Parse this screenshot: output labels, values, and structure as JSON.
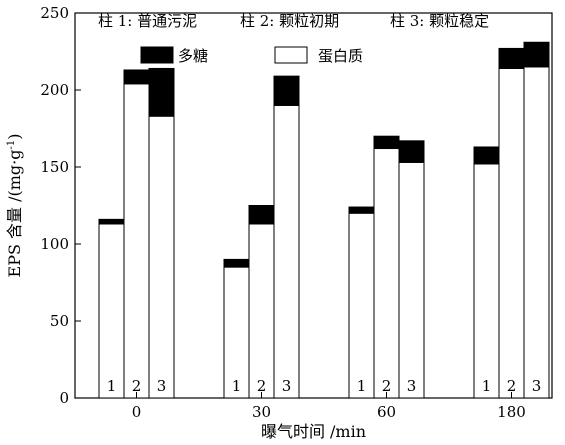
{
  "chart_data": {
    "type": "bar",
    "stacked": true,
    "title": "",
    "xlabel": "曝气时间 /min",
    "ylabel_main": "EPS 含量 /(mg·g",
    "ylabel_sup": "-1",
    "ylabel_close": ")",
    "ylim": [
      0,
      250
    ],
    "yticks": [
      0,
      50,
      100,
      150,
      200,
      250
    ],
    "grid": false,
    "categories": [
      "0",
      "30",
      "60",
      "180"
    ],
    "column_labels": [
      "1",
      "2",
      "3"
    ],
    "column_notes": [
      "柱 1: 普通污泥",
      "柱 2: 颗粒初期",
      "柱 3: 颗粒稳定"
    ],
    "series": [
      {
        "name": "蛋白质",
        "color": "#ffffff",
        "values": [
          [
            113,
            204,
            183
          ],
          [
            85,
            113,
            190
          ],
          [
            120,
            162,
            153
          ],
          [
            152,
            214,
            215
          ]
        ]
      },
      {
        "name": "多糖",
        "color": "#000000",
        "values": [
          [
            3,
            9,
            31
          ],
          [
            5,
            12,
            19
          ],
          [
            4,
            8,
            14
          ],
          [
            11,
            13,
            16
          ]
        ]
      }
    ],
    "legend": {
      "placement": "top",
      "order": [
        "多糖",
        "蛋白质"
      ]
    }
  }
}
